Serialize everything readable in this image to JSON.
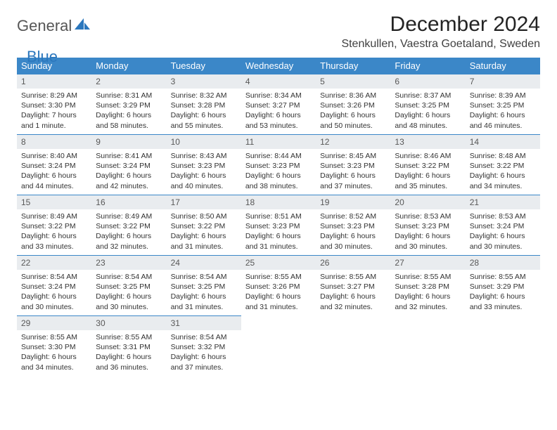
{
  "brand": {
    "part1": "General",
    "part2": "Blue"
  },
  "title": "December 2024",
  "location": "Stenkullen, Vaestra Goetaland, Sweden",
  "colors": {
    "header_bg": "#3b87c8",
    "header_text": "#ffffff",
    "daynum_bg": "#e9ecef",
    "rule": "#3b87c8",
    "logo_gray": "#565656",
    "logo_blue": "#2b77bd"
  },
  "columns": [
    "Sunday",
    "Monday",
    "Tuesday",
    "Wednesday",
    "Thursday",
    "Friday",
    "Saturday"
  ],
  "weeks": [
    [
      {
        "n": "1",
        "sr": "8:29 AM",
        "ss": "3:30 PM",
        "dl": "7 hours and 1 minute."
      },
      {
        "n": "2",
        "sr": "8:31 AM",
        "ss": "3:29 PM",
        "dl": "6 hours and 58 minutes."
      },
      {
        "n": "3",
        "sr": "8:32 AM",
        "ss": "3:28 PM",
        "dl": "6 hours and 55 minutes."
      },
      {
        "n": "4",
        "sr": "8:34 AM",
        "ss": "3:27 PM",
        "dl": "6 hours and 53 minutes."
      },
      {
        "n": "5",
        "sr": "8:36 AM",
        "ss": "3:26 PM",
        "dl": "6 hours and 50 minutes."
      },
      {
        "n": "6",
        "sr": "8:37 AM",
        "ss": "3:25 PM",
        "dl": "6 hours and 48 minutes."
      },
      {
        "n": "7",
        "sr": "8:39 AM",
        "ss": "3:25 PM",
        "dl": "6 hours and 46 minutes."
      }
    ],
    [
      {
        "n": "8",
        "sr": "8:40 AM",
        "ss": "3:24 PM",
        "dl": "6 hours and 44 minutes."
      },
      {
        "n": "9",
        "sr": "8:41 AM",
        "ss": "3:24 PM",
        "dl": "6 hours and 42 minutes."
      },
      {
        "n": "10",
        "sr": "8:43 AM",
        "ss": "3:23 PM",
        "dl": "6 hours and 40 minutes."
      },
      {
        "n": "11",
        "sr": "8:44 AM",
        "ss": "3:23 PM",
        "dl": "6 hours and 38 minutes."
      },
      {
        "n": "12",
        "sr": "8:45 AM",
        "ss": "3:23 PM",
        "dl": "6 hours and 37 minutes."
      },
      {
        "n": "13",
        "sr": "8:46 AM",
        "ss": "3:22 PM",
        "dl": "6 hours and 35 minutes."
      },
      {
        "n": "14",
        "sr": "8:48 AM",
        "ss": "3:22 PM",
        "dl": "6 hours and 34 minutes."
      }
    ],
    [
      {
        "n": "15",
        "sr": "8:49 AM",
        "ss": "3:22 PM",
        "dl": "6 hours and 33 minutes."
      },
      {
        "n": "16",
        "sr": "8:49 AM",
        "ss": "3:22 PM",
        "dl": "6 hours and 32 minutes."
      },
      {
        "n": "17",
        "sr": "8:50 AM",
        "ss": "3:22 PM",
        "dl": "6 hours and 31 minutes."
      },
      {
        "n": "18",
        "sr": "8:51 AM",
        "ss": "3:23 PM",
        "dl": "6 hours and 31 minutes."
      },
      {
        "n": "19",
        "sr": "8:52 AM",
        "ss": "3:23 PM",
        "dl": "6 hours and 30 minutes."
      },
      {
        "n": "20",
        "sr": "8:53 AM",
        "ss": "3:23 PM",
        "dl": "6 hours and 30 minutes."
      },
      {
        "n": "21",
        "sr": "8:53 AM",
        "ss": "3:24 PM",
        "dl": "6 hours and 30 minutes."
      }
    ],
    [
      {
        "n": "22",
        "sr": "8:54 AM",
        "ss": "3:24 PM",
        "dl": "6 hours and 30 minutes."
      },
      {
        "n": "23",
        "sr": "8:54 AM",
        "ss": "3:25 PM",
        "dl": "6 hours and 30 minutes."
      },
      {
        "n": "24",
        "sr": "8:54 AM",
        "ss": "3:25 PM",
        "dl": "6 hours and 31 minutes."
      },
      {
        "n": "25",
        "sr": "8:55 AM",
        "ss": "3:26 PM",
        "dl": "6 hours and 31 minutes."
      },
      {
        "n": "26",
        "sr": "8:55 AM",
        "ss": "3:27 PM",
        "dl": "6 hours and 32 minutes."
      },
      {
        "n": "27",
        "sr": "8:55 AM",
        "ss": "3:28 PM",
        "dl": "6 hours and 32 minutes."
      },
      {
        "n": "28",
        "sr": "8:55 AM",
        "ss": "3:29 PM",
        "dl": "6 hours and 33 minutes."
      }
    ],
    [
      {
        "n": "29",
        "sr": "8:55 AM",
        "ss": "3:30 PM",
        "dl": "6 hours and 34 minutes."
      },
      {
        "n": "30",
        "sr": "8:55 AM",
        "ss": "3:31 PM",
        "dl": "6 hours and 36 minutes."
      },
      {
        "n": "31",
        "sr": "8:54 AM",
        "ss": "3:32 PM",
        "dl": "6 hours and 37 minutes."
      },
      null,
      null,
      null,
      null
    ]
  ],
  "labels": {
    "sunrise": "Sunrise: ",
    "sunset": "Sunset: ",
    "daylight": "Daylight: "
  }
}
